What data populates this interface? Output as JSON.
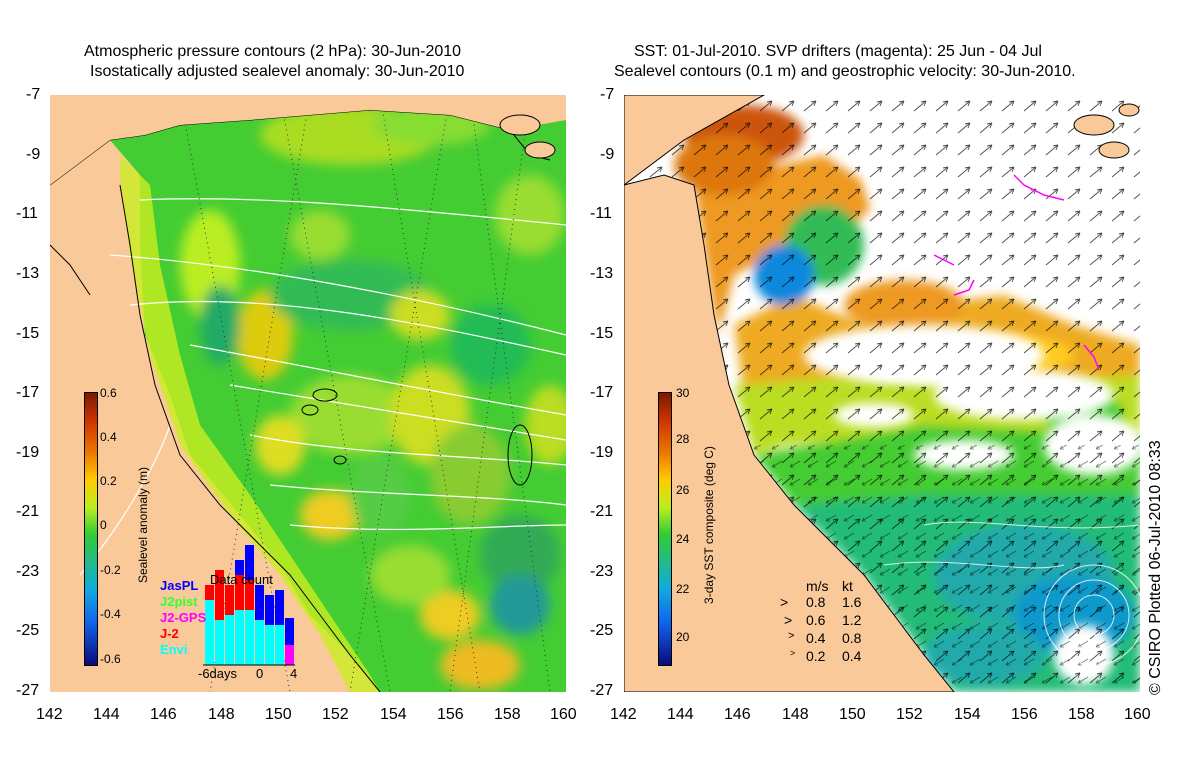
{
  "left_panel": {
    "title_line1": "Atmospheric pressure contours (2 hPa): 30-Jun-2010",
    "title_line2": "Isostatically adjusted sealevel anomaly: 30-Jun-2010",
    "colorbar": {
      "title": "Sealevel anomaly (m)",
      "ticks": [
        "0.6",
        "0.4",
        "0.2",
        "0",
        "-0.2",
        "-0.4",
        "-0.6"
      ]
    },
    "data_count": {
      "title": "Data count",
      "legend": [
        {
          "label": "JasPL",
          "color": "#0000ff"
        },
        {
          "label": "J2pist",
          "color": "#33ff33"
        },
        {
          "label": "J2-GPS",
          "color": "#ff00ff"
        },
        {
          "label": "J-2",
          "color": "#ff0000"
        },
        {
          "label": "Envi",
          "color": "#00ffff"
        }
      ],
      "xlabels": [
        "-6days",
        "0",
        "4"
      ]
    }
  },
  "right_panel": {
    "title_line1": "SST: 01-Jul-2010. SVP drifters (magenta): 25 Jun - 04 Jul",
    "title_line2": "Sealevel contours (0.1 m) and geostrophic velocity: 30-Jun-2010.",
    "colorbar": {
      "title": "3-day SST composite (deg C)",
      "ticks": [
        "30",
        "28",
        "26",
        "24",
        "22",
        "20"
      ]
    },
    "velocity_legend": {
      "header_ms": "m/s",
      "header_kt": "kt",
      "rows": [
        {
          "ms": "0.8",
          "kt": "1.6"
        },
        {
          "ms": "0.6",
          "kt": "1.2"
        },
        {
          "ms": "0.4",
          "kt": "0.8"
        },
        {
          "ms": "0.2",
          "kt": "0.4"
        }
      ]
    }
  },
  "axes": {
    "lat_ticks": [
      "-7",
      "-9",
      "-11",
      "-13",
      "-15",
      "-17",
      "-19",
      "-21",
      "-23",
      "-25",
      "-27"
    ],
    "lon_ticks": [
      "142",
      "144",
      "146",
      "148",
      "150",
      "152",
      "154",
      "156",
      "158",
      "160"
    ]
  },
  "credit": "© CSIRO Plotted 06-Jul-2010 08:33",
  "colors": {
    "land": "#f9c999",
    "sla_green": "#33cc33",
    "sla_yellow": "#ccee22",
    "sst_white": "#ffffff",
    "drifter": "#ff00ff"
  }
}
